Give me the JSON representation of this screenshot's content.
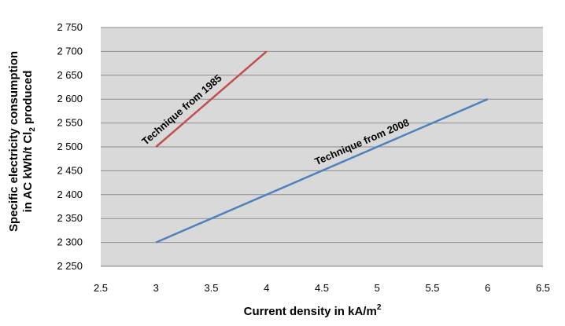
{
  "chart_data": {
    "type": "line",
    "x_label_main": "Current  density in kA/m",
    "x_label_sup": "2",
    "y_label_line1": "Specific electricity consumption",
    "y_label_line2_pre": "in AC kWh/t Cl",
    "y_label_line2_sub": "2",
    "y_label_line2_post": " produced",
    "xlim": [
      2.5,
      6.5
    ],
    "ylim": [
      2250,
      2750
    ],
    "x_ticks": [
      2.5,
      3,
      3.5,
      4,
      4.5,
      5,
      5.5,
      6,
      6.5
    ],
    "x_tick_labels": [
      "2.5",
      "3",
      "3.5",
      "4",
      "4.5",
      "5",
      "5.5",
      "6",
      "6.5"
    ],
    "y_ticks": [
      2250,
      2300,
      2350,
      2400,
      2450,
      2500,
      2550,
      2600,
      2650,
      2700,
      2750
    ],
    "y_tick_labels": [
      "2 250",
      "2 300",
      "2 350",
      "2 400",
      "2 450",
      "2 500",
      "2 550",
      "2 600",
      "2 650",
      "2 700",
      "2 750"
    ],
    "grid": true,
    "legend": "none",
    "plot_background": "#d9d9d9",
    "series": [
      {
        "annotation": "Technique from  1985",
        "color": "#c0504d",
        "x": [
          3,
          4
        ],
        "y": [
          2500,
          2700
        ]
      },
      {
        "annotation": "Technique from 2008",
        "color": "#4f81bd",
        "x": [
          3,
          6
        ],
        "y": [
          2300,
          2600
        ]
      }
    ]
  }
}
